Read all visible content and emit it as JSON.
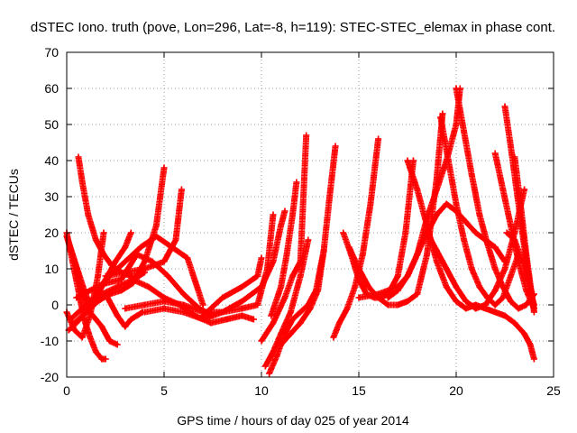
{
  "chart_data": {
    "type": "scatter",
    "title": "dSTEC Iono. truth (pove, Lon=296, Lat=-8, h=119): STEC-STEC_elemax in phase cont.",
    "xlabel": "GPS time / hours of day 025 of year 2014",
    "ylabel": "dSTEC  / TECUs",
    "xlim": [
      0,
      25
    ],
    "ylim": [
      -20,
      70
    ],
    "xticks": [
      0,
      5,
      10,
      15,
      20,
      25
    ],
    "yticks": [
      -20,
      -10,
      0,
      10,
      20,
      30,
      40,
      50,
      60,
      70
    ],
    "grid": true,
    "marker": "+",
    "color": "#ff0000",
    "series": [
      {
        "x": [
          0.0,
          0.3,
          0.6,
          0.9,
          1.2,
          1.5,
          1.8,
          2.0
        ],
        "y": [
          20,
          12,
          4,
          -4,
          -9,
          -13,
          -15,
          -15
        ]
      },
      {
        "x": [
          0.0,
          0.3,
          0.6,
          0.9,
          1.2,
          1.5,
          1.8,
          2.2,
          2.6
        ],
        "y": [
          19,
          14,
          8,
          2,
          -2,
          -4,
          -6,
          -10,
          -11
        ]
      },
      {
        "x": [
          0.0,
          0.3,
          0.6,
          0.9,
          1.2
        ],
        "y": [
          19,
          14,
          9,
          4,
          0
        ]
      },
      {
        "x": [
          0.6,
          0.8,
          1.1,
          1.5,
          1.9,
          2.3,
          2.8,
          3.3,
          3.7,
          4.0
        ],
        "y": [
          41,
          34,
          25,
          18,
          14,
          11,
          9,
          8,
          8,
          9
        ]
      },
      {
        "x": [
          0.0,
          0.4,
          0.8,
          1.2,
          1.6,
          1.9
        ],
        "y": [
          -2,
          -7,
          -9,
          -3,
          8,
          20
        ]
      },
      {
        "x": [
          0.1,
          0.5,
          1.0,
          1.5,
          2.0,
          2.5,
          3.0,
          3.3
        ],
        "y": [
          -7,
          -5,
          -2,
          2,
          7,
          12,
          16,
          20
        ]
      },
      {
        "x": [
          0.2,
          0.8,
          1.4,
          2.0,
          2.6,
          3.0,
          3.3,
          3.6,
          3.9
        ],
        "y": [
          -4,
          -1,
          2,
          3,
          -3,
          -6,
          -4,
          -3,
          -2
        ]
      },
      {
        "x": [
          0.4,
          1.0,
          1.6,
          2.2,
          2.8,
          3.4,
          4.0,
          4.6,
          5.0
        ],
        "y": [
          -5,
          -2,
          1,
          3,
          4,
          6,
          12,
          22,
          38
        ]
      },
      {
        "x": [
          0.5,
          1.2,
          2.0,
          2.8,
          3.6,
          4.4,
          5.2,
          6.0,
          6.8,
          7.5
        ],
        "y": [
          2,
          4,
          6,
          7,
          14,
          12,
          8,
          3,
          -1,
          -3
        ]
      },
      {
        "x": [
          1.0,
          1.8,
          2.6,
          3.4,
          4.2,
          5.0,
          5.8,
          6.6,
          7.4,
          8.2,
          9.0,
          9.6
        ],
        "y": [
          0,
          3,
          5,
          7,
          5,
          2,
          0,
          -3,
          -5,
          -4,
          -3,
          -4
        ]
      },
      {
        "x": [
          1.5,
          2.2,
          3.0,
          3.8,
          4.6,
          5.4,
          6.2,
          7.0
        ],
        "y": [
          4,
          8,
          12,
          16,
          19,
          16,
          13,
          0
        ]
      },
      {
        "x": [
          2.0,
          3.0,
          4.0,
          5.0,
          5.6,
          5.9
        ],
        "y": [
          8,
          9,
          10,
          12,
          18,
          32
        ]
      },
      {
        "x": [
          3.0,
          4.0,
          5.0,
          6.0,
          7.0,
          8.0,
          9.0,
          9.8,
          10.3,
          10.6
        ],
        "y": [
          -1,
          0,
          1,
          0,
          -2,
          -2,
          -1,
          0,
          10,
          25
        ]
      },
      {
        "x": [
          4.0,
          5.0,
          6.0,
          7.0,
          8.0,
          9.0,
          10.0,
          10.6,
          11.0,
          11.2
        ],
        "y": [
          -2,
          -1,
          -2,
          -4,
          -2,
          1,
          5,
          12,
          22,
          26
        ]
      },
      {
        "x": [
          7.0,
          8.0,
          9.0,
          9.8,
          10.0
        ],
        "y": [
          -3,
          2,
          5,
          8,
          13
        ]
      },
      {
        "x": [
          10.2,
          10.6,
          11.0,
          11.5,
          12.0,
          12.4
        ],
        "y": [
          -17,
          -13,
          -8,
          -2,
          8,
          18
        ]
      },
      {
        "x": [
          10.4,
          10.8,
          11.2,
          11.6,
          12.0,
          12.4,
          12.8,
          13.2
        ],
        "y": [
          -19,
          -14,
          -8,
          -4,
          -2,
          0,
          4,
          15
        ]
      },
      {
        "x": [
          10.0,
          10.6,
          11.2,
          11.6,
          12.0,
          12.3
        ],
        "y": [
          -10,
          -5,
          2,
          8,
          12,
          47
        ]
      },
      {
        "x": [
          11.0,
          11.5,
          12.0,
          12.5,
          12.9,
          13.2,
          13.5,
          13.8
        ],
        "y": [
          -11,
          -8,
          -5,
          -1,
          4,
          15,
          30,
          44
        ]
      },
      {
        "x": [
          10.5,
          11.0,
          11.3,
          11.6,
          11.8
        ],
        "y": [
          -3,
          5,
          14,
          25,
          34
        ]
      },
      {
        "x": [
          13.7,
          14.0,
          14.4,
          14.8,
          15.2,
          15.6,
          16.0
        ],
        "y": [
          -9,
          -5,
          -1,
          5,
          14,
          28,
          46
        ]
      },
      {
        "x": [
          14.2,
          14.6,
          15.0,
          15.4,
          15.8,
          16.2,
          16.6,
          17.0,
          17.4,
          17.8
        ],
        "y": [
          20,
          14,
          7,
          3,
          2,
          2,
          4,
          8,
          20,
          40
        ]
      },
      {
        "x": [
          14.5,
          15.0,
          15.5,
          16.0,
          16.5,
          17.0,
          17.5,
          18.0,
          18.5,
          19.0,
          19.3
        ],
        "y": [
          16,
          10,
          5,
          2,
          0,
          0,
          1,
          3,
          14,
          35,
          53
        ]
      },
      {
        "x": [
          15.0,
          16.0,
          17.0,
          17.5,
          18.0,
          18.5,
          19.0,
          19.5,
          20.0,
          20.2
        ],
        "y": [
          2,
          3,
          5,
          8,
          14,
          24,
          32,
          40,
          50,
          60
        ]
      },
      {
        "x": [
          17.5,
          18.0,
          18.5,
          19.0,
          19.5,
          20.0,
          20.5,
          21.0
        ],
        "y": [
          40,
          32,
          22,
          12,
          5,
          1,
          -1,
          0
        ]
      },
      {
        "x": [
          16.5,
          17.0,
          17.5,
          18.0,
          18.5,
          19.0,
          19.5,
          20.0,
          20.5,
          21.0,
          21.5,
          22.0,
          22.5
        ],
        "y": [
          2,
          4,
          8,
          14,
          20,
          25,
          28,
          26,
          23,
          20,
          18,
          16,
          12
        ]
      },
      {
        "x": [
          18.5,
          19.0,
          19.5,
          20.0,
          20.5,
          21.0,
          21.5,
          22.0,
          22.5,
          23.0,
          23.5
        ],
        "y": [
          20,
          15,
          10,
          5,
          1,
          -1,
          0,
          4,
          10,
          20,
          32
        ]
      },
      {
        "x": [
          19.2,
          19.6,
          20.0,
          20.4,
          20.8,
          21.2,
          21.6,
          22.0,
          22.4,
          22.8,
          23.2
        ],
        "y": [
          52,
          40,
          28,
          18,
          10,
          5,
          2,
          0,
          2,
          8,
          14
        ]
      },
      {
        "x": [
          20.0,
          20.4,
          20.8,
          21.2,
          21.6,
          22.0,
          22.4,
          22.8,
          23.2,
          23.6,
          24.0
        ],
        "y": [
          60,
          48,
          36,
          25,
          17,
          10,
          5,
          1,
          -1,
          0,
          3
        ]
      },
      {
        "x": [
          22.5,
          22.8,
          23.1,
          23.4,
          23.7,
          24.0
        ],
        "y": [
          55,
          44,
          32,
          20,
          8,
          -1
        ]
      },
      {
        "x": [
          22.0,
          22.4,
          22.8,
          23.2,
          23.6,
          24.0
        ],
        "y": [
          42,
          32,
          22,
          12,
          4,
          -1
        ]
      },
      {
        "x": [
          23.0,
          23.3,
          23.6,
          23.9,
          24.0
        ],
        "y": [
          41,
          28,
          14,
          2,
          -2
        ]
      },
      {
        "x": [
          21.0,
          21.5,
          22.0,
          22.5,
          23.0,
          23.5,
          23.8,
          24.0
        ],
        "y": [
          0,
          -1,
          -2,
          -3,
          -5,
          -8,
          -11,
          -15
        ]
      },
      {
        "x": [
          22.6,
          23.0,
          23.4,
          23.8,
          24.0
        ],
        "y": [
          20,
          18,
          12,
          4,
          0
        ]
      }
    ]
  }
}
